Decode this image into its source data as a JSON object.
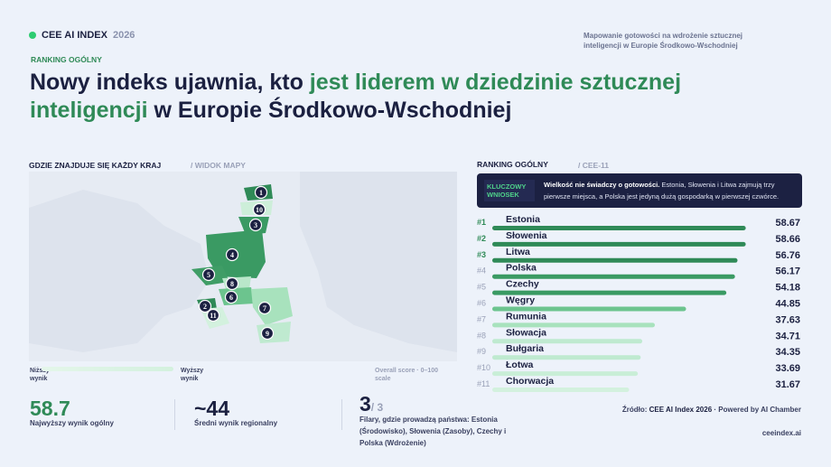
{
  "header": {
    "brand": "CEE AI INDEX",
    "year": "2026",
    "tagline": "Mapowanie gotowości na wdrożenie sztucznej inteligencji w Europie Środkowo-Wschodniej",
    "kicker": "RANKING OGÓLNY",
    "title_start": "Nowy indeks ujawnia, kto ",
    "title_highlight": "jest liderem w dziedzinie sztucznej inteligencji",
    "title_end": " w Europie Środkowo-Wschodniej"
  },
  "map": {
    "title": "GDZIE ZNAJDUJE SIĘ KAŻDY KRAJ",
    "subtitle": "/ WIDOK MAPY",
    "markers": [
      "1",
      "10",
      "3",
      "4",
      "5",
      "8",
      "6",
      "2",
      "11",
      "7",
      "9"
    ],
    "legend_low": "Niższy wynik",
    "legend_high": "Wyższy wynik",
    "legend_note": "Overall score · 0–100 scale"
  },
  "insight": {
    "badge": "KLUCZOWY WNIOSEK",
    "lead": "Wielkość nie świadczy o gotowości.",
    "text": " Estonia, Słowenia i Litwa zajmują trzy pierwsze miejsca, a Polska jest jedyną dużą gospodarką w pierwszej czwórce."
  },
  "chart_data": {
    "type": "bar",
    "orientation": "horizontal",
    "title": "RANKING OGÓLNY",
    "subtitle": "/ CEE-11",
    "ranks": [
      "#1",
      "#2",
      "#3",
      "#4",
      "#5",
      "#6",
      "#7",
      "#8",
      "#9",
      "#10",
      "#11"
    ],
    "categories": [
      "Estonia",
      "Słowenia",
      "Litwa",
      "Polska",
      "Czechy",
      "Węgry",
      "Rumunia",
      "Słowacja",
      "Bułgaria",
      "Łotwa",
      "Chorwacja"
    ],
    "values": [
      58.67,
      58.66,
      56.76,
      56.17,
      54.18,
      44.85,
      37.63,
      34.71,
      34.35,
      33.69,
      31.67
    ],
    "colors": [
      "#2f8a57",
      "#2f8a57",
      "#2f8a57",
      "#3a9a63",
      "#3a9a63",
      "#6cc48e",
      "#a8e2bd",
      "#bfead0",
      "#bfead0",
      "#c9eed7",
      "#d3f1de"
    ],
    "xlim": [
      0,
      60
    ]
  },
  "stats": [
    {
      "value": "58.7",
      "label": "Najwyższy wynik ogólny"
    },
    {
      "value": "~44",
      "label": "Średni wynik regionalny"
    },
    {
      "value": "3",
      "suffix": "/ 3",
      "label": "Filary, gdzie prowadzą państwa: Estonia (Środowisko), Słowenia (Zasoby), Czechy i Polska (Wdrożenie)"
    }
  ],
  "footer": {
    "source_prefix": "Źródło: ",
    "source": "CEE AI Index 2026",
    "powered": " · Powered by AI Chamber",
    "url": "ceeindex.ai"
  }
}
